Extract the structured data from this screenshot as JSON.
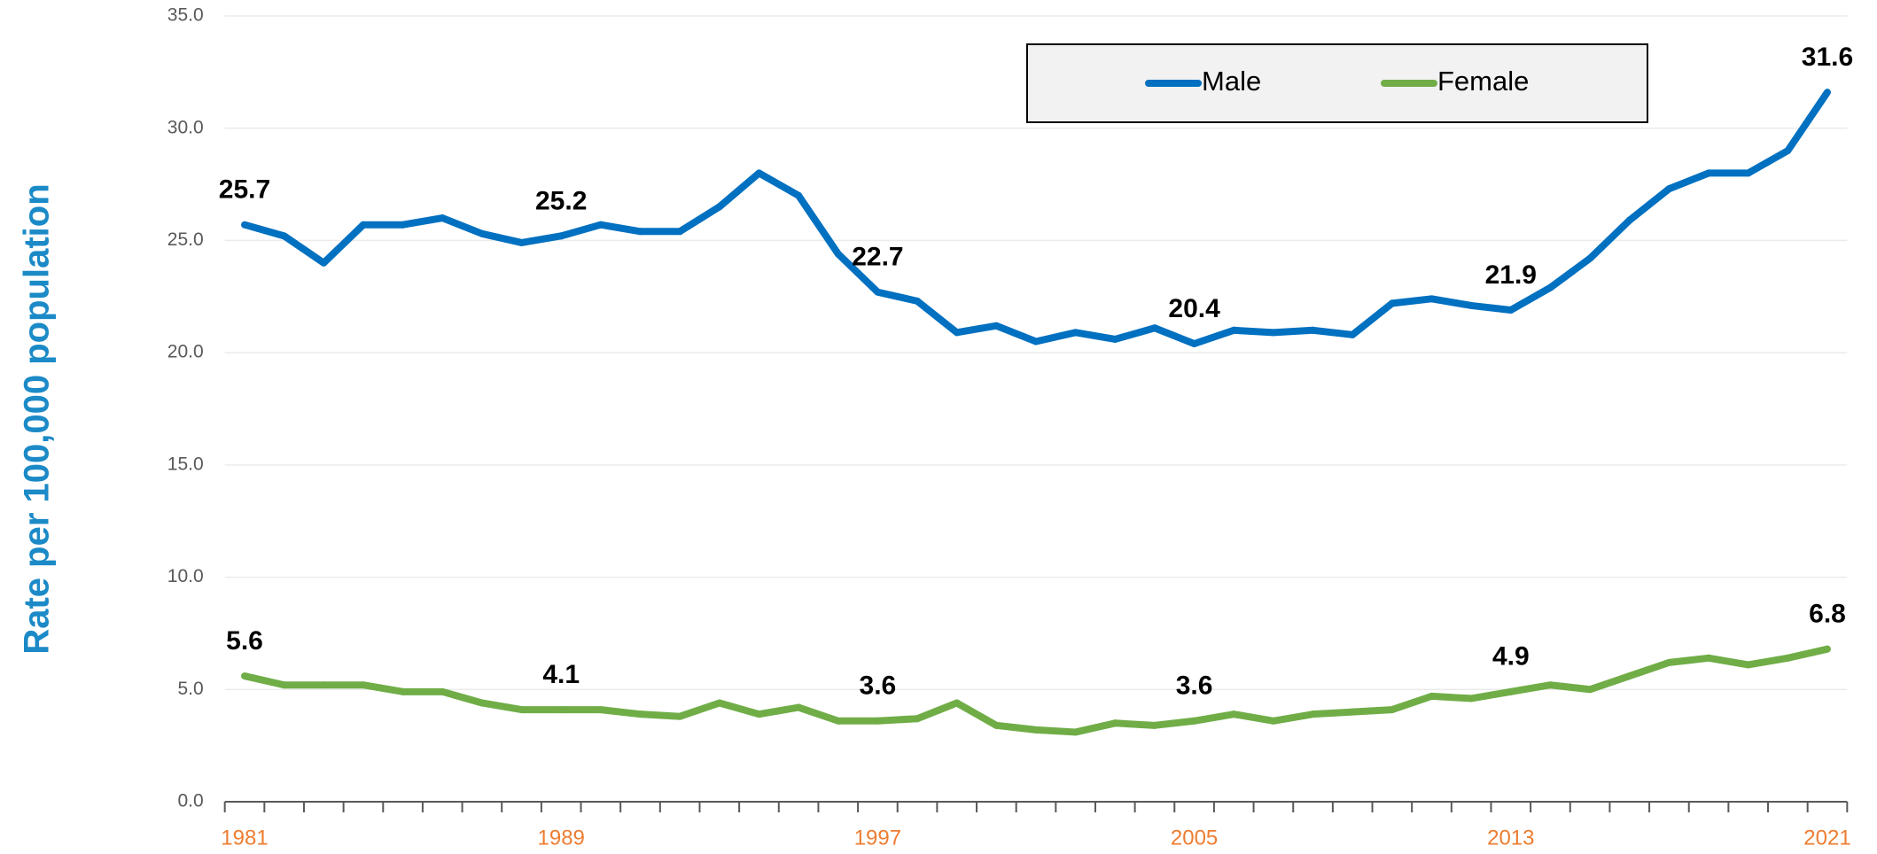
{
  "chart_data": {
    "type": "line",
    "y_label": "Rate per 100,000 population",
    "categories": [
      "1981",
      null,
      null,
      null,
      null,
      null,
      null,
      null,
      "1989",
      null,
      null,
      null,
      null,
      null,
      null,
      null,
      "1997",
      null,
      null,
      null,
      null,
      null,
      null,
      null,
      "2005",
      null,
      null,
      null,
      null,
      null,
      null,
      null,
      "2013",
      null,
      null,
      null,
      null,
      null,
      null,
      null,
      "2021"
    ],
    "series": [
      {
        "name": "Male",
        "color": "#0070c0",
        "values": [
          25.7,
          25.2,
          24.0,
          25.7,
          25.7,
          26.0,
          25.3,
          24.9,
          25.2,
          25.7,
          25.4,
          25.4,
          26.5,
          28.0,
          27.0,
          24.4,
          22.7,
          22.3,
          20.9,
          21.2,
          20.5,
          20.9,
          20.6,
          21.1,
          20.4,
          21.0,
          20.9,
          21.0,
          20.8,
          22.2,
          22.4,
          22.1,
          21.9,
          22.9,
          24.2,
          25.9,
          27.3,
          28.0,
          28.0,
          29.0,
          31.6
        ],
        "value_labels": [
          "25.7",
          null,
          null,
          null,
          null,
          null,
          null,
          null,
          "25.2",
          null,
          null,
          null,
          null,
          null,
          null,
          null,
          "22.7",
          null,
          null,
          null,
          null,
          null,
          null,
          null,
          "20.4",
          null,
          null,
          null,
          null,
          null,
          null,
          null,
          "21.9",
          null,
          null,
          null,
          null,
          null,
          null,
          null,
          "31.6"
        ]
      },
      {
        "name": "Female",
        "color": "#70ad47",
        "values": [
          5.6,
          5.2,
          5.2,
          5.2,
          4.9,
          4.9,
          4.4,
          4.1,
          4.1,
          4.1,
          3.9,
          3.8,
          4.4,
          3.9,
          4.2,
          3.6,
          3.6,
          3.7,
          4.4,
          3.4,
          3.2,
          3.1,
          3.5,
          3.4,
          3.6,
          3.9,
          3.6,
          3.9,
          4.0,
          4.1,
          4.7,
          4.6,
          4.9,
          5.2,
          5.0,
          5.6,
          6.2,
          6.4,
          6.1,
          6.4,
          6.8
        ],
        "value_labels": [
          "5.6",
          null,
          null,
          null,
          null,
          null,
          null,
          null,
          "4.1",
          null,
          null,
          null,
          null,
          null,
          null,
          null,
          "3.6",
          null,
          null,
          null,
          null,
          null,
          null,
          null,
          "3.6",
          null,
          null,
          null,
          null,
          null,
          null,
          null,
          "4.9",
          null,
          null,
          null,
          null,
          null,
          null,
          null,
          "6.8"
        ]
      }
    ],
    "ylim": [
      0,
      35
    ],
    "yticks": [
      {
        "value": 0,
        "label": "0.0"
      },
      {
        "value": 5,
        "label": "5.0"
      },
      {
        "value": 10,
        "label": "10.0"
      },
      {
        "value": 15,
        "label": "15.0"
      },
      {
        "value": 20,
        "label": "20.0"
      },
      {
        "value": 25,
        "label": "25.0"
      },
      {
        "value": 30,
        "label": "30.0"
      },
      {
        "value": 35,
        "label": "35.0"
      }
    ],
    "grid": true,
    "legend": "top"
  }
}
